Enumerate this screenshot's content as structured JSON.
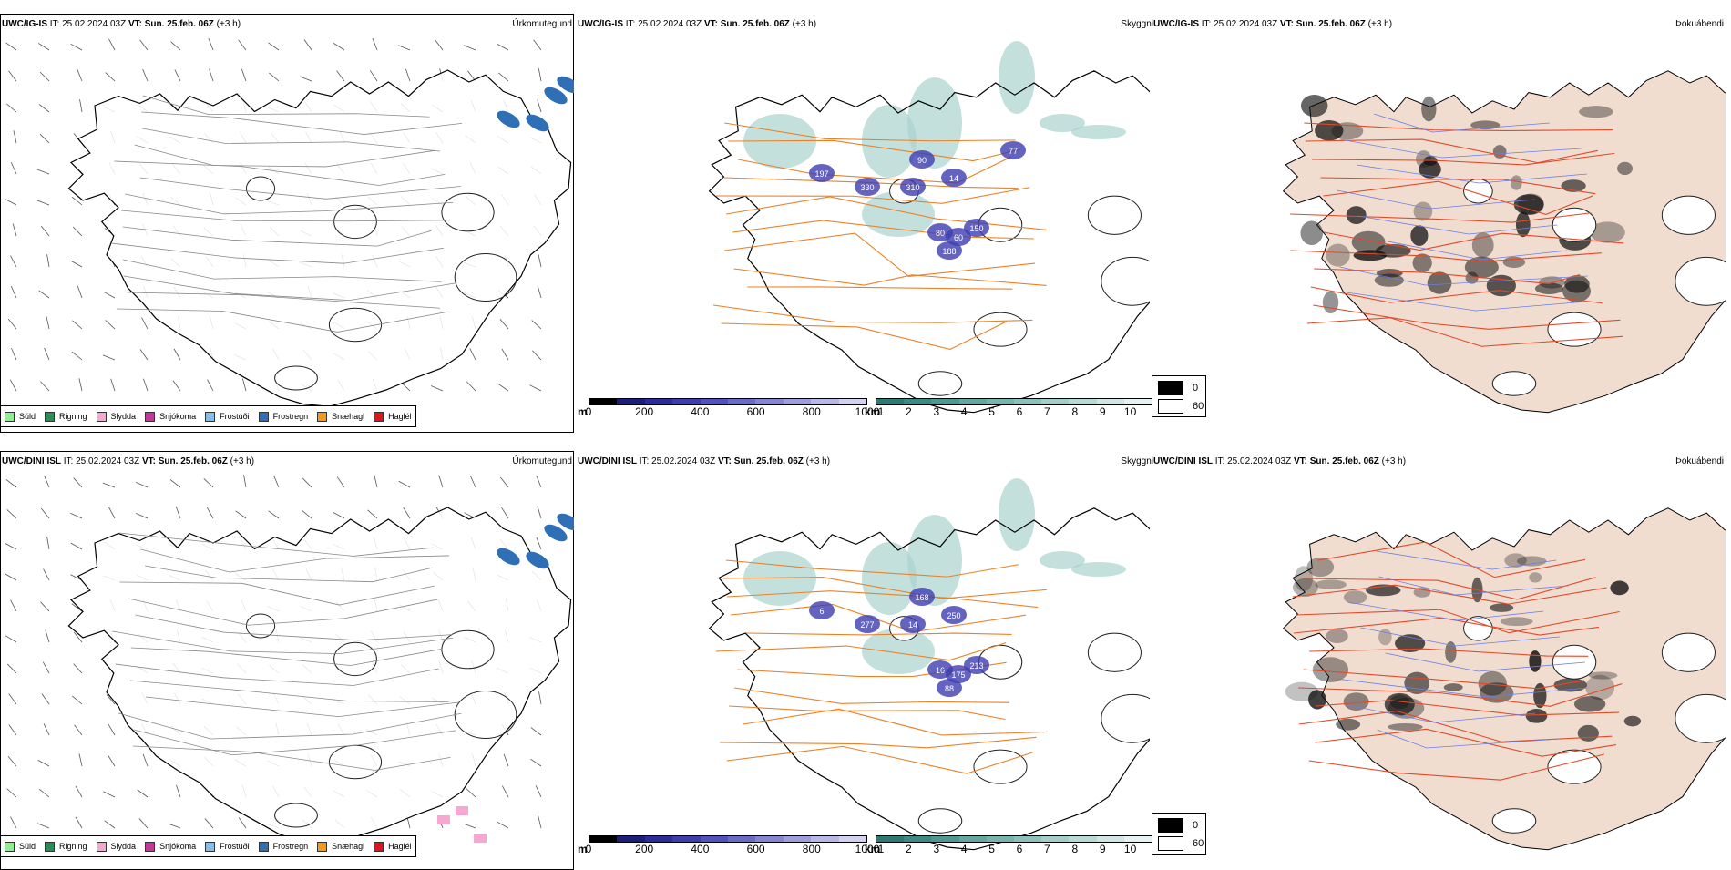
{
  "rows": [
    {
      "model": "UWC/IG-IS",
      "it_label": "IT:",
      "it_value": "25.02.2024 03Z",
      "vt_label": "VT:",
      "vt_value": "Sun. 25.feb. 06Z",
      "lead": "(+3 h)"
    },
    {
      "model": "UWC/DINI ISL",
      "it_label": "IT:",
      "it_value": "25.02.2024 03Z",
      "vt_label": "VT:",
      "vt_value": "Sun. 25.feb. 06Z",
      "lead": "(+3 h)"
    }
  ],
  "panel_titles": {
    "precip": "Úrkomutegund",
    "cloud": "Skyggni",
    "fog": "Þokuábendi"
  },
  "precip_legend": [
    {
      "label": "Súld",
      "color": "#90ee90"
    },
    {
      "label": "Rigning",
      "color": "#2e8b57"
    },
    {
      "label": "Slydda",
      "color": "#f5a9d0"
    },
    {
      "label": "Snjókoma",
      "color": "#c0399b"
    },
    {
      "label": "Frostúði",
      "color": "#87bde8"
    },
    {
      "label": "Frostregn",
      "color": "#2f6fb5"
    },
    {
      "label": "Snæhagl",
      "color": "#f39a1e"
    },
    {
      "label": "Haglél",
      "color": "#e0141b"
    }
  ],
  "ceiling_bar": {
    "unit": "m",
    "labels": [
      "0",
      "200",
      "400",
      "600",
      "800",
      "1000"
    ],
    "colors": [
      "#000000",
      "#1d1d7a",
      "#2b2b9a",
      "#3d3db0",
      "#5252bd",
      "#6a6ac8",
      "#8585d2",
      "#9e9edc",
      "#b8b8e6",
      "#d2d2f0"
    ]
  },
  "vis_bar": {
    "unit": "km",
    "labels": [
      "1",
      "2",
      "3",
      "4",
      "5",
      "6",
      "7",
      "8",
      "9",
      "10"
    ],
    "colors": [
      "#2c7a73",
      "#3d8a82",
      "#4f9891",
      "#64a6a0",
      "#79b3ae",
      "#8ebfbb",
      "#a4ccc8",
      "#b9d9d6",
      "#cfe6e3",
      "#e6f2f1"
    ]
  },
  "fog_legend": [
    "0",
    "60"
  ],
  "top_cloud_labels": [
    "197",
    "330",
    "310",
    "90",
    "14",
    "80",
    "60",
    "150",
    "188",
    "77"
  ],
  "bottom_cloud_labels": [
    "6",
    "277",
    "14",
    "168",
    "250",
    "16",
    "175",
    "213",
    "88"
  ],
  "colors": {
    "roads": "#e8822a",
    "coast": "#000000",
    "land_fog": "#f1ddd0",
    "fog_roads": "#e04a2a",
    "fog_rivers": "#6c7ee0"
  }
}
